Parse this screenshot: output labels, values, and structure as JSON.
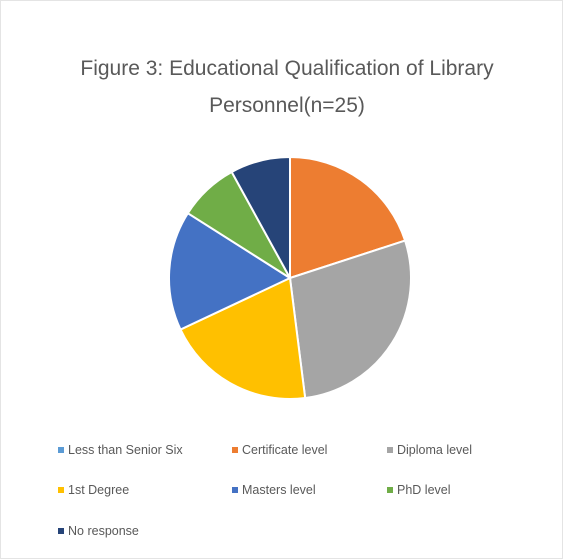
{
  "chart_data": {
    "type": "pie",
    "title_lines": [
      "Figure 3: Educational Qualification of Library",
      "Personnel(n=25)"
    ],
    "labels": [
      "Less than Senior Six",
      "Certificate level",
      "Diploma level",
      "1st Degree",
      "Masters level",
      "PhD level",
      "No response"
    ],
    "values": [
      0,
      5,
      7,
      5,
      4,
      2,
      2
    ],
    "colors": [
      "#5b9bd5",
      "#ed7d31",
      "#a5a5a5",
      "#ffc000",
      "#4472c4",
      "#70ad47",
      "#264478"
    ],
    "legend_position": "bottom",
    "slice_border_color": "#ffffff"
  }
}
